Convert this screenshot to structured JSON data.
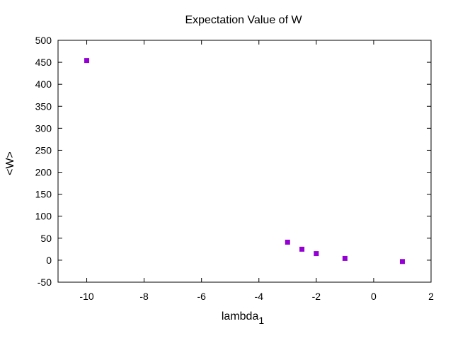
{
  "chart_data": {
    "type": "scatter",
    "title": "Expectation Value of W",
    "xlabel": "lambda",
    "xlabel_subscript": "1",
    "ylabel": "<W>",
    "xlim": [
      -11,
      2
    ],
    "ylim": [
      -50,
      500
    ],
    "xticks": [
      -10,
      -8,
      -6,
      -4,
      -2,
      0,
      2
    ],
    "yticks": [
      -50,
      0,
      50,
      100,
      150,
      200,
      250,
      300,
      350,
      400,
      450,
      500
    ],
    "grid": false,
    "legend": "none",
    "marker": "square",
    "color": "#9400d3",
    "series": [
      {
        "x": [
          -10,
          -3,
          -2.5,
          -2,
          -1,
          1
        ],
        "y": [
          454,
          41,
          25,
          15,
          4,
          -3
        ]
      }
    ]
  }
}
